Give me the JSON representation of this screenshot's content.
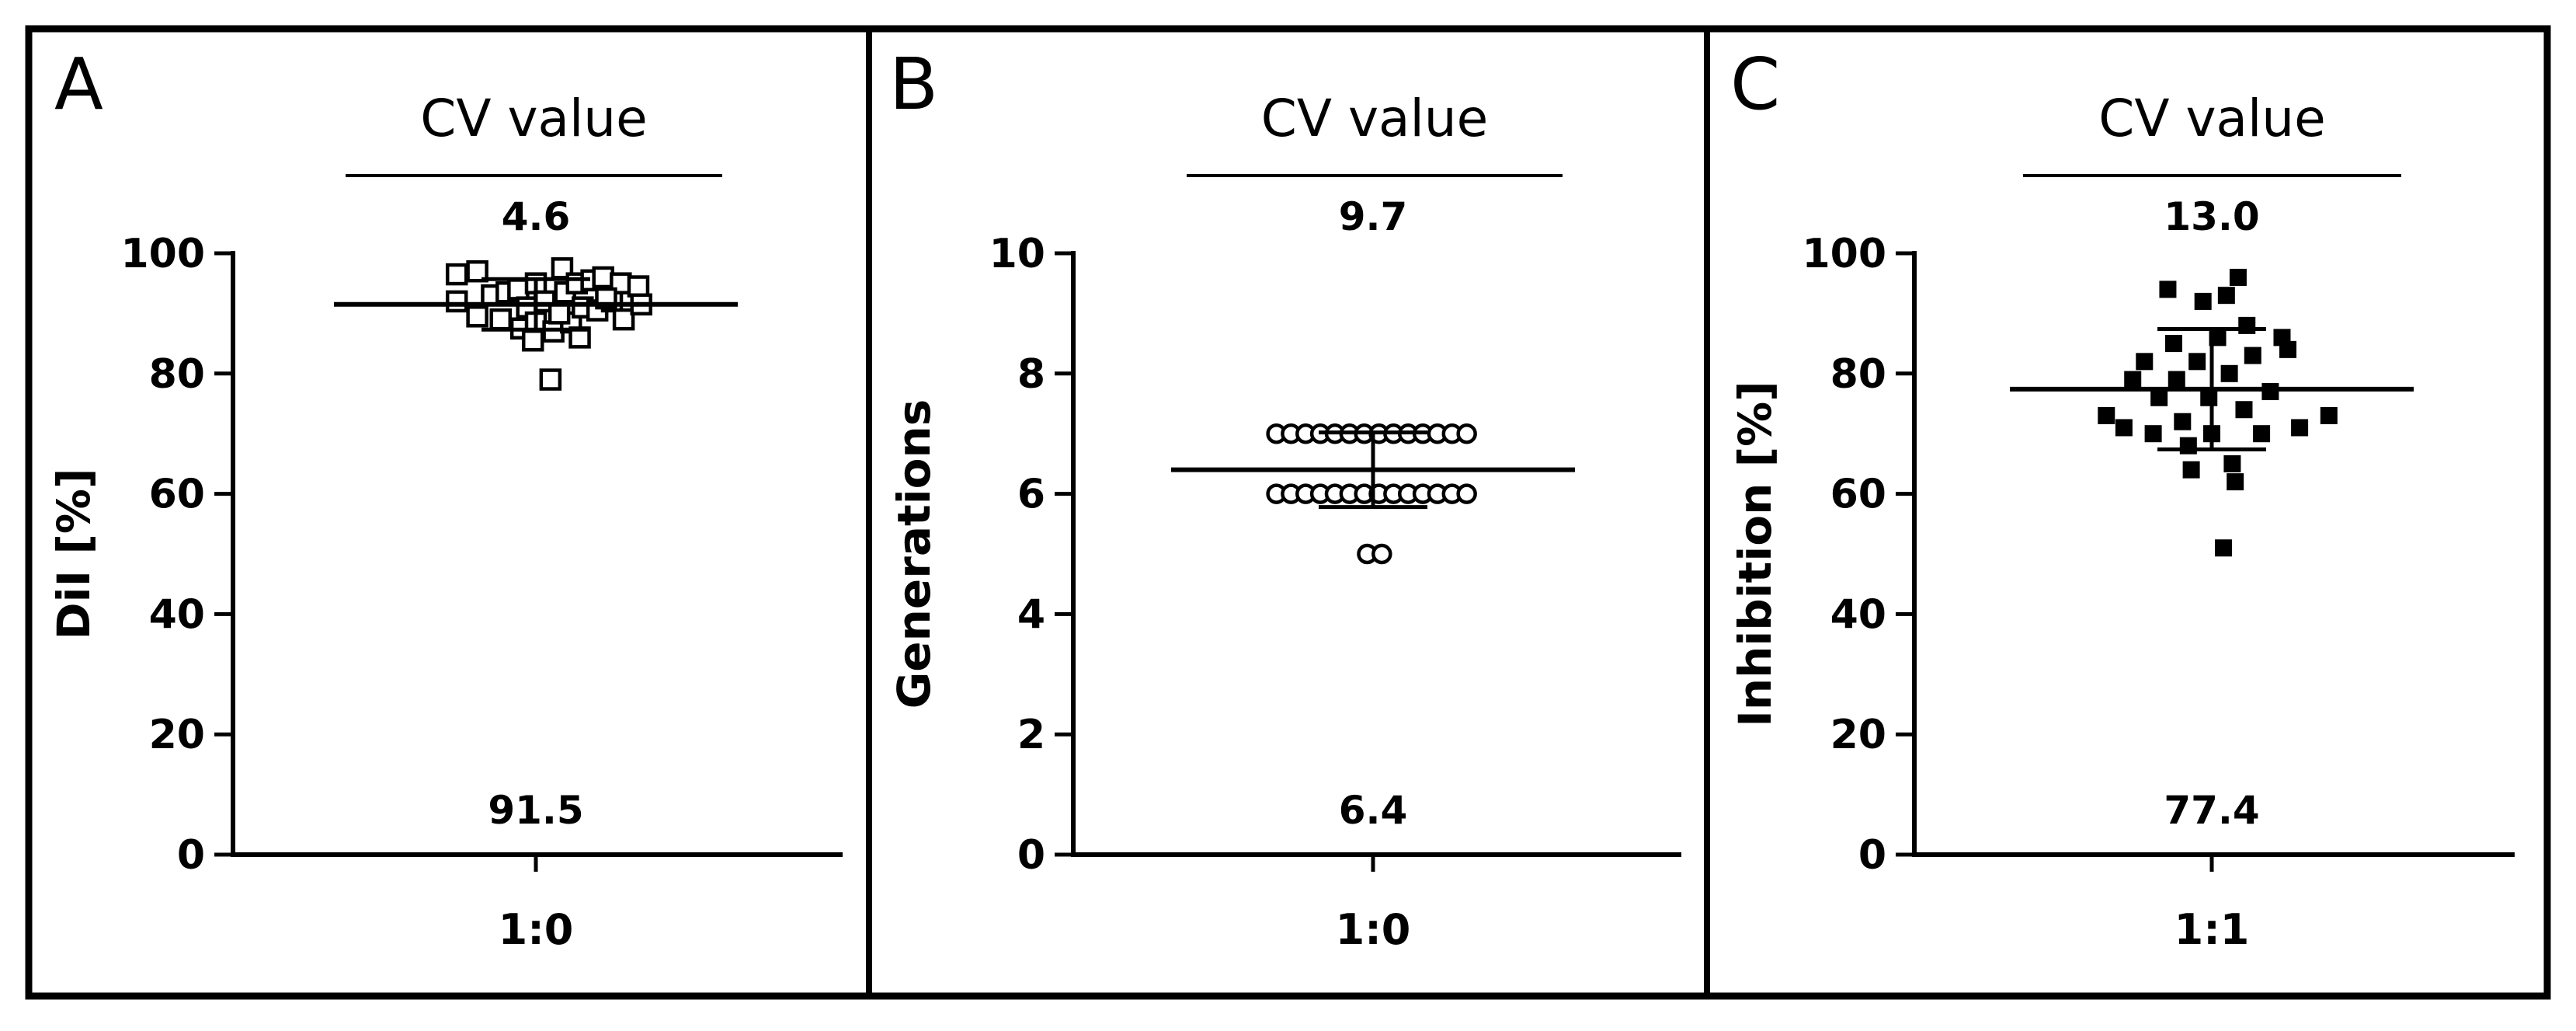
{
  "figure_title": "",
  "chart_data": [
    {
      "type": "scatter",
      "panel": "A",
      "title": "CV value",
      "ylabel": "DiI [%]",
      "xlabel": "",
      "category": "1:0",
      "ylim": [
        0,
        100
      ],
      "yticks": [
        0,
        20,
        40,
        60,
        80,
        100
      ],
      "marker": "open-square",
      "cv_value": "4.6",
      "mean_label": "91.5",
      "mean": 91.5,
      "sd": 4.2,
      "points": [
        {
          "offset": -0.27,
          "y": 96.5
        },
        {
          "offset": -0.2,
          "y": 97.0
        },
        {
          "offset": -0.27,
          "y": 92.0
        },
        {
          "offset": -0.2,
          "y": 89.5
        },
        {
          "offset": -0.15,
          "y": 93.0
        },
        {
          "offset": -0.1,
          "y": 93.5
        },
        {
          "offset": -0.12,
          "y": 89.0
        },
        {
          "offset": -0.06,
          "y": 94.0
        },
        {
          "offset": -0.05,
          "y": 87.5
        },
        {
          "offset": -0.03,
          "y": 91.0
        },
        {
          "offset": 0.0,
          "y": 95.0
        },
        {
          "offset": 0.0,
          "y": 88.5
        },
        {
          "offset": -0.01,
          "y": 85.5
        },
        {
          "offset": 0.03,
          "y": 92.0
        },
        {
          "offset": 0.05,
          "y": 79.0
        },
        {
          "offset": 0.06,
          "y": 87.0
        },
        {
          "offset": 0.09,
          "y": 97.5
        },
        {
          "offset": 0.1,
          "y": 93.5
        },
        {
          "offset": 0.12,
          "y": 88.5
        },
        {
          "offset": 0.14,
          "y": 95.0
        },
        {
          "offset": 0.15,
          "y": 86.0
        },
        {
          "offset": 0.16,
          "y": 91.0
        },
        {
          "offset": 0.19,
          "y": 95.5
        },
        {
          "offset": 0.21,
          "y": 90.5
        },
        {
          "offset": 0.23,
          "y": 96.0
        },
        {
          "offset": 0.26,
          "y": 92.0
        },
        {
          "offset": 0.29,
          "y": 95.0
        },
        {
          "offset": 0.3,
          "y": 89.0
        },
        {
          "offset": 0.35,
          "y": 94.5
        },
        {
          "offset": 0.36,
          "y": 91.5
        },
        {
          "offset": 0.24,
          "y": 92.5
        },
        {
          "offset": 0.08,
          "y": 90.0
        }
      ]
    },
    {
      "type": "scatter",
      "panel": "B",
      "title": "CV value",
      "ylabel": "Generations",
      "xlabel": "",
      "category": "1:0",
      "ylim": [
        0,
        10
      ],
      "yticks": [
        0,
        2,
        4,
        6,
        8,
        10
      ],
      "marker": "open-circle",
      "cv_value": "9.7",
      "mean_label": "6.4",
      "mean": 6.4,
      "sd": 0.62,
      "points": [
        {
          "offset": -0.33,
          "y": 7
        },
        {
          "offset": -0.28,
          "y": 7
        },
        {
          "offset": -0.23,
          "y": 7
        },
        {
          "offset": -0.18,
          "y": 7
        },
        {
          "offset": -0.13,
          "y": 7
        },
        {
          "offset": -0.08,
          "y": 7
        },
        {
          "offset": -0.03,
          "y": 7
        },
        {
          "offset": 0.02,
          "y": 7
        },
        {
          "offset": 0.07,
          "y": 7
        },
        {
          "offset": 0.12,
          "y": 7
        },
        {
          "offset": 0.17,
          "y": 7
        },
        {
          "offset": 0.22,
          "y": 7
        },
        {
          "offset": 0.27,
          "y": 7
        },
        {
          "offset": 0.32,
          "y": 7
        },
        {
          "offset": -0.33,
          "y": 6
        },
        {
          "offset": -0.28,
          "y": 6
        },
        {
          "offset": -0.23,
          "y": 6
        },
        {
          "offset": -0.18,
          "y": 6
        },
        {
          "offset": -0.13,
          "y": 6
        },
        {
          "offset": -0.08,
          "y": 6
        },
        {
          "offset": -0.03,
          "y": 6
        },
        {
          "offset": 0.02,
          "y": 6
        },
        {
          "offset": 0.07,
          "y": 6
        },
        {
          "offset": 0.12,
          "y": 6
        },
        {
          "offset": 0.17,
          "y": 6
        },
        {
          "offset": 0.22,
          "y": 6
        },
        {
          "offset": 0.27,
          "y": 6
        },
        {
          "offset": 0.32,
          "y": 6
        },
        {
          "offset": -0.02,
          "y": 5
        },
        {
          "offset": 0.03,
          "y": 5
        }
      ]
    },
    {
      "type": "scatter",
      "panel": "C",
      "title": "CV value",
      "ylabel": "Inhibition [%]",
      "xlabel": "",
      "category": "1:1",
      "ylim": [
        0,
        100
      ],
      "yticks": [
        0,
        20,
        40,
        60,
        80,
        100
      ],
      "marker": "filled-square",
      "cv_value": "13.0",
      "mean_label": "77.4",
      "mean": 77.4,
      "sd": 10.0,
      "points": [
        {
          "offset": -0.36,
          "y": 73
        },
        {
          "offset": -0.3,
          "y": 71
        },
        {
          "offset": -0.27,
          "y": 79
        },
        {
          "offset": -0.23,
          "y": 82
        },
        {
          "offset": -0.2,
          "y": 70
        },
        {
          "offset": -0.18,
          "y": 76
        },
        {
          "offset": -0.15,
          "y": 94
        },
        {
          "offset": -0.13,
          "y": 85
        },
        {
          "offset": -0.12,
          "y": 79
        },
        {
          "offset": -0.1,
          "y": 72
        },
        {
          "offset": -0.08,
          "y": 68
        },
        {
          "offset": -0.07,
          "y": 64
        },
        {
          "offset": -0.05,
          "y": 82
        },
        {
          "offset": -0.03,
          "y": 92
        },
        {
          "offset": -0.01,
          "y": 76
        },
        {
          "offset": 0.0,
          "y": 70
        },
        {
          "offset": 0.02,
          "y": 86
        },
        {
          "offset": 0.04,
          "y": 51
        },
        {
          "offset": 0.05,
          "y": 93
        },
        {
          "offset": 0.06,
          "y": 80
        },
        {
          "offset": 0.07,
          "y": 65
        },
        {
          "offset": 0.08,
          "y": 62
        },
        {
          "offset": 0.09,
          "y": 96
        },
        {
          "offset": 0.11,
          "y": 74
        },
        {
          "offset": 0.12,
          "y": 88
        },
        {
          "offset": 0.14,
          "y": 83
        },
        {
          "offset": 0.17,
          "y": 70
        },
        {
          "offset": 0.2,
          "y": 77
        },
        {
          "offset": 0.24,
          "y": 86
        },
        {
          "offset": 0.26,
          "y": 84
        },
        {
          "offset": 0.3,
          "y": 71
        },
        {
          "offset": 0.4,
          "y": 73
        }
      ]
    }
  ]
}
